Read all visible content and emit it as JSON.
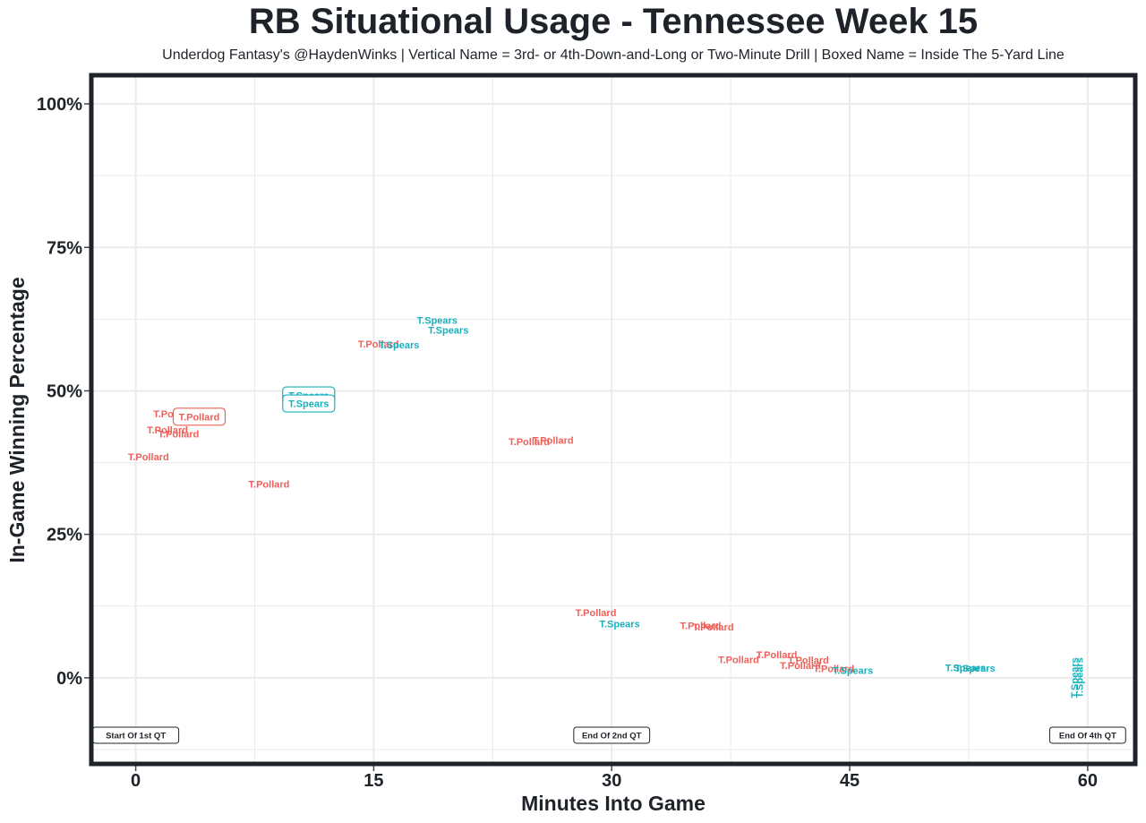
{
  "chart_data": {
    "type": "scatter",
    "title": "RB Situational Usage - Tennessee Week 15",
    "subtitle": "Underdog Fantasy's @HaydenWinks | Vertical Name = 3rd- or 4th-Down-and-Long or Two-Minute Drill | Boxed Name = Inside The 5-Yard Line",
    "xlabel": "Minutes Into Game",
    "ylabel": "In-Game Winning Percentage",
    "xlim": [
      -2.8,
      63
    ],
    "ylim": [
      -15,
      105
    ],
    "x_ticks": [
      0,
      15,
      30,
      45,
      60
    ],
    "x_tick_labels": [
      "0",
      "15",
      "30",
      "45",
      "60"
    ],
    "y_ticks": [
      0,
      25,
      50,
      75,
      100
    ],
    "y_tick_labels": [
      "0%",
      "25%",
      "50%",
      "75%",
      "100%"
    ],
    "colors": {
      "T.Pollard": "#f0605a",
      "T.Spears": "#17b1bd",
      "axis": "#1e2229",
      "grid": "#ebebeb"
    },
    "points": [
      {
        "player": "T.Pollard",
        "x": 2.4,
        "y": 46.0,
        "style": "normal"
      },
      {
        "player": "T.Pollard",
        "x": 4.0,
        "y": 45.5,
        "style": "boxed"
      },
      {
        "player": "T.Pollard",
        "x": 2.0,
        "y": 43.2,
        "style": "normal"
      },
      {
        "player": "T.Pollard",
        "x": 2.7,
        "y": 42.5,
        "style": "normal"
      },
      {
        "player": "T.Pollard",
        "x": 0.8,
        "y": 38.5,
        "style": "normal"
      },
      {
        "player": "T.Spears",
        "x": 10.9,
        "y": 49.2,
        "style": "boxed"
      },
      {
        "player": "T.Spears",
        "x": 10.9,
        "y": 47.8,
        "style": "boxed"
      },
      {
        "player": "T.Pollard",
        "x": 8.4,
        "y": 33.8,
        "style": "normal"
      },
      {
        "player": "T.Pollard",
        "x": 15.3,
        "y": 58.2,
        "style": "normal"
      },
      {
        "player": "T.Spears",
        "x": 16.6,
        "y": 58.0,
        "style": "normal"
      },
      {
        "player": "T.Spears",
        "x": 19.0,
        "y": 62.3,
        "style": "normal"
      },
      {
        "player": "T.Spears",
        "x": 19.7,
        "y": 60.6,
        "style": "normal"
      },
      {
        "player": "T.Pollard",
        "x": 24.8,
        "y": 41.2,
        "style": "normal"
      },
      {
        "player": "T.Pollard",
        "x": 26.3,
        "y": 41.4,
        "style": "normal"
      },
      {
        "player": "T.Pollard",
        "x": 29.0,
        "y": 11.4,
        "style": "normal"
      },
      {
        "player": "T.Spears",
        "x": 30.5,
        "y": 9.4,
        "style": "normal"
      },
      {
        "player": "T.Pollard",
        "x": 35.6,
        "y": 9.1,
        "style": "normal"
      },
      {
        "player": "T.Pollard",
        "x": 36.4,
        "y": 8.9,
        "style": "normal"
      },
      {
        "player": "T.Pollard",
        "x": 38.0,
        "y": 3.2,
        "style": "normal"
      },
      {
        "player": "T.Pollard",
        "x": 40.4,
        "y": 4.0,
        "style": "normal"
      },
      {
        "player": "T.Pollard",
        "x": 42.4,
        "y": 3.1,
        "style": "normal"
      },
      {
        "player": "T.Pollard",
        "x": 41.9,
        "y": 2.2,
        "style": "normal"
      },
      {
        "player": "T.Pollard",
        "x": 44.0,
        "y": 1.6,
        "style": "normal"
      },
      {
        "player": "T.Spears",
        "x": 45.2,
        "y": 1.3,
        "style": "normal"
      },
      {
        "player": "T.Spears",
        "x": 52.3,
        "y": 1.8,
        "style": "normal"
      },
      {
        "player": "T.Spears",
        "x": 52.9,
        "y": 1.7,
        "style": "normal"
      },
      {
        "player": "T.Spears",
        "x": 59.4,
        "y": 0.0,
        "style": "vertical"
      },
      {
        "player": "T.Spears",
        "x": 59.7,
        "y": 0.0,
        "style": "vertical"
      }
    ],
    "annotations": [
      {
        "label": "Start Of 1st QT",
        "x": 0,
        "y": -10
      },
      {
        "label": "End Of 2nd QT",
        "x": 30,
        "y": -10
      },
      {
        "label": "End Of 4th QT",
        "x": 60,
        "y": -10
      }
    ]
  }
}
